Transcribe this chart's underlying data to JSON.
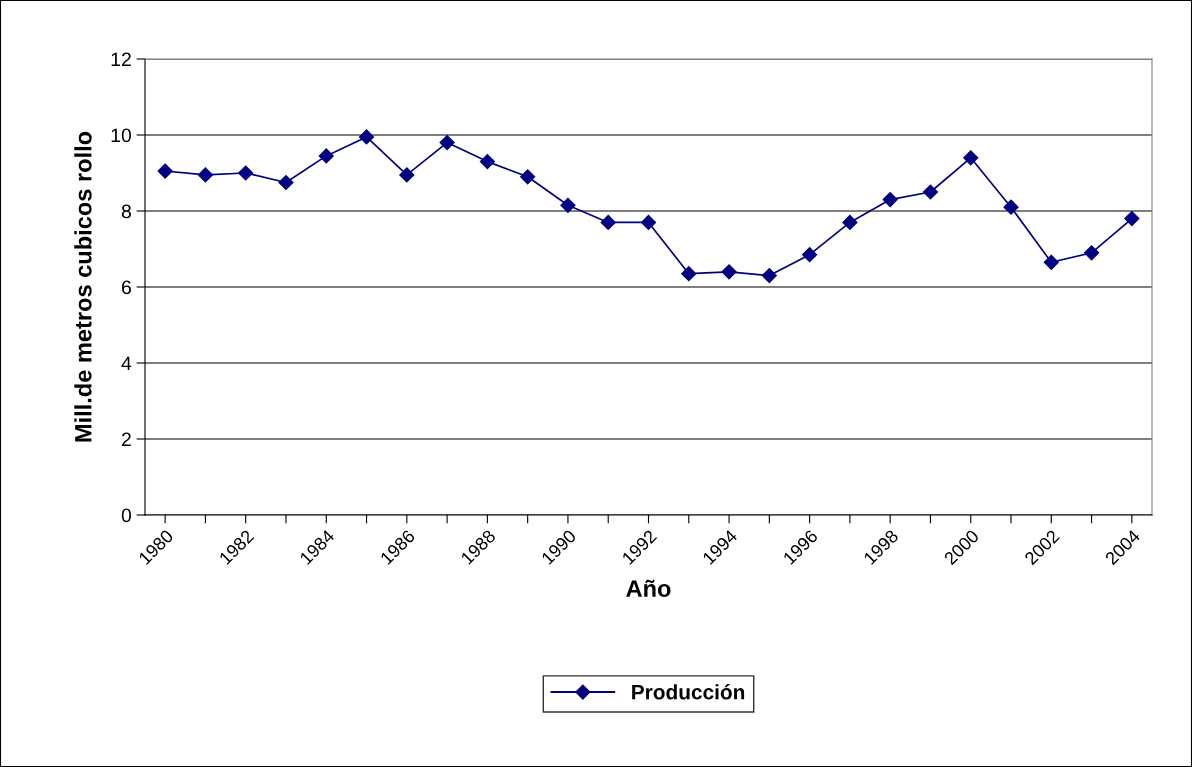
{
  "chart_data": {
    "type": "line",
    "xlabel": "Año",
    "ylabel": "Mill.de metros cubicos rollo",
    "categories": [
      "1980",
      null,
      "1982",
      null,
      "1984",
      null,
      "1986",
      null,
      "1988",
      null,
      "1990",
      null,
      "1992",
      null,
      "1994",
      null,
      "1996",
      null,
      "1998",
      null,
      "2000",
      null,
      "2002",
      null,
      "2004"
    ],
    "series": [
      {
        "name": "Producción",
        "color": "#000080",
        "values": [
          9.05,
          8.95,
          9.0,
          8.75,
          9.45,
          9.95,
          8.95,
          9.8,
          9.3,
          8.9,
          8.15,
          7.7,
          7.7,
          6.35,
          6.4,
          6.3,
          6.85,
          7.7,
          8.3,
          8.5,
          9.4,
          8.1,
          6.65,
          6.9,
          7.8
        ]
      }
    ],
    "ylim": [
      0,
      12
    ],
    "yticks": [
      0,
      2,
      4,
      6,
      8,
      10,
      12
    ],
    "grid": "y",
    "legend": "bottom",
    "marker": "diamond",
    "line_style": "solid"
  }
}
